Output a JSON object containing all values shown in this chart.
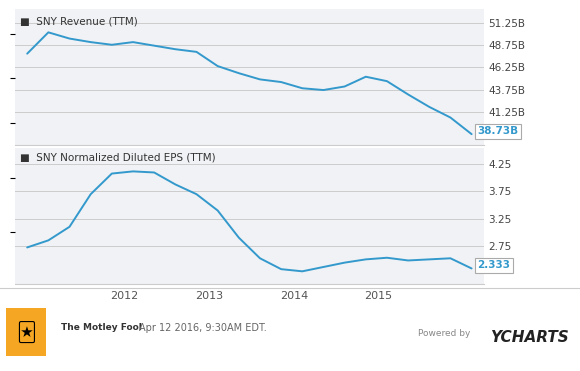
{
  "title1": "SNY Revenue (TTM)",
  "title2": "SNY Normalized Diluted EPS (TTM)",
  "line_color": "#3399CC",
  "bg_color": "#ffffff",
  "plot_bg_color": "#f0f2f5",
  "border_color": "#cccccc",
  "label_color": "#3399CC",
  "tick_color": "#555555",
  "footer_text": "Apr 12 2016, 9:30AM EDT.",
  "last_value1": "38.73B",
  "last_value2": "2.333",
  "revenue": {
    "x": [
      2010.85,
      2011.1,
      2011.35,
      2011.6,
      2011.85,
      2012.1,
      2012.35,
      2012.6,
      2012.85,
      2013.1,
      2013.35,
      2013.6,
      2013.85,
      2014.1,
      2014.35,
      2014.6,
      2014.85,
      2015.1,
      2015.35,
      2015.6,
      2015.85,
      2016.1
    ],
    "y": [
      47.8,
      50.2,
      49.5,
      49.1,
      48.8,
      49.1,
      48.7,
      48.3,
      48.0,
      46.4,
      45.6,
      44.9,
      44.6,
      43.9,
      43.7,
      44.1,
      45.2,
      44.7,
      43.2,
      41.8,
      40.6,
      38.73
    ],
    "yticks": [
      41.25,
      43.75,
      46.25,
      48.75,
      51.25
    ],
    "ymin": 37.5,
    "ymax": 52.8
  },
  "eps": {
    "x": [
      2010.85,
      2011.1,
      2011.35,
      2011.6,
      2011.85,
      2012.1,
      2012.35,
      2012.6,
      2012.85,
      2013.1,
      2013.35,
      2013.6,
      2013.85,
      2014.1,
      2014.35,
      2014.6,
      2014.85,
      2015.1,
      2015.35,
      2015.6,
      2015.85,
      2016.1
    ],
    "y": [
      2.72,
      2.85,
      3.1,
      3.7,
      4.08,
      4.12,
      4.1,
      3.88,
      3.7,
      3.4,
      2.9,
      2.52,
      2.32,
      2.28,
      2.36,
      2.44,
      2.5,
      2.53,
      2.48,
      2.5,
      2.52,
      2.333
    ],
    "yticks": [
      2.75,
      3.25,
      3.75,
      4.25
    ],
    "ymin": 2.05,
    "ymax": 4.55
  },
  "xticks": [
    2012,
    2013,
    2014,
    2015
  ],
  "xmin": 2010.7,
  "xmax": 2016.25
}
